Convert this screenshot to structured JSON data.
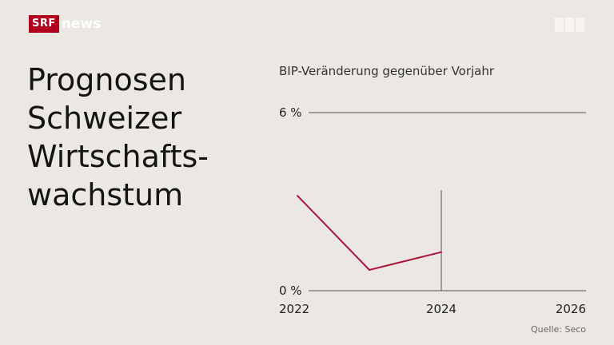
{
  "brand": {
    "box": "SRF",
    "text": "news",
    "color": "#b0001e"
  },
  "title_lines": [
    "Prognosen",
    "Schweizer",
    "Wirtschafts-",
    "wachstum"
  ],
  "chart_data": {
    "type": "line",
    "title": "BIP-Veränderung gegenüber Vorjahr",
    "x_range": [
      2022,
      2026
    ],
    "ylim": [
      0,
      6
    ],
    "y_ticks": [
      {
        "value": 6,
        "label": "6 %"
      },
      {
        "value": 0,
        "label": "0 %"
      }
    ],
    "x_ticks": [
      {
        "value": 2022,
        "label": "2022"
      },
      {
        "value": 2024,
        "label": "2024"
      },
      {
        "value": 2026,
        "label": "2026"
      }
    ],
    "marker_x": 2024,
    "series": [
      {
        "name": "BIP",
        "color": "#a8163a",
        "x": [
          2022,
          2023,
          2024
        ],
        "y": [
          3.2,
          0.7,
          1.3
        ]
      }
    ],
    "source": "Quelle: Seco"
  }
}
